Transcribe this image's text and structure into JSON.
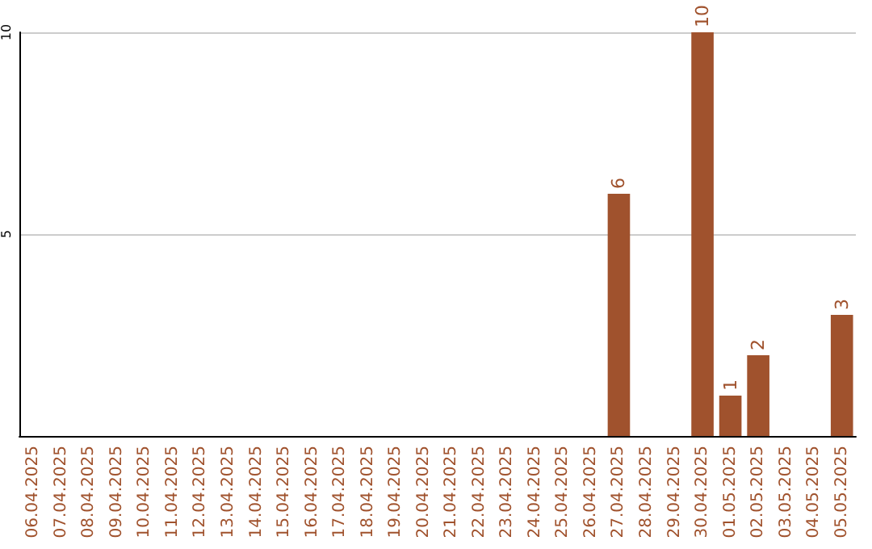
{
  "chart_data": {
    "type": "bar",
    "categories": [
      "06.04.2025",
      "07.04.2025",
      "08.04.2025",
      "09.04.2025",
      "10.04.2025",
      "11.04.2025",
      "12.04.2025",
      "13.04.2025",
      "14.04.2025",
      "15.04.2025",
      "16.04.2025",
      "17.04.2025",
      "18.04.2025",
      "19.04.2025",
      "20.04.2025",
      "21.04.2025",
      "22.04.2025",
      "23.04.2025",
      "24.04.2025",
      "25.04.2025",
      "26.04.2025",
      "27.04.2025",
      "28.04.2025",
      "29.04.2025",
      "30.04.2025",
      "01.05.2025",
      "02.05.2025",
      "03.05.2025",
      "04.05.2025",
      "05.05.2025"
    ],
    "values": [
      0,
      0,
      0,
      0,
      0,
      0,
      0,
      0,
      0,
      0,
      0,
      0,
      0,
      0,
      0,
      0,
      0,
      0,
      0,
      0,
      0,
      6,
      0,
      0,
      10,
      1,
      2,
      0,
      0,
      3
    ],
    "value_labels": [
      null,
      null,
      null,
      null,
      null,
      null,
      null,
      null,
      null,
      null,
      null,
      null,
      null,
      null,
      null,
      null,
      null,
      null,
      null,
      null,
      null,
      "6",
      null,
      null,
      "10",
      "1",
      "2",
      null,
      null,
      "3"
    ],
    "color": "#a0522d",
    "ylim": [
      0,
      10
    ],
    "yticks": [
      5,
      10
    ],
    "grid": "y"
  }
}
